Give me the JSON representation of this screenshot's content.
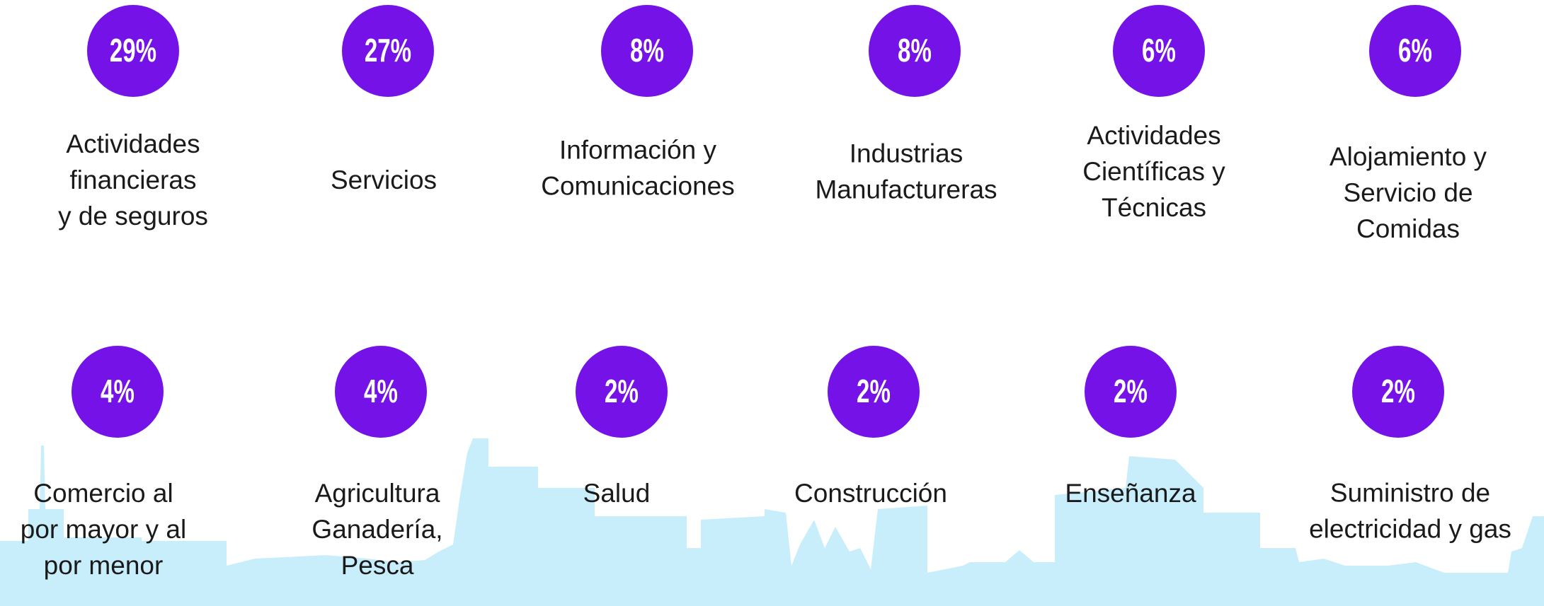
{
  "items": [
    {
      "percent": "29%",
      "lines": [
        "Actividades",
        "financieras",
        "y de seguros"
      ]
    },
    {
      "percent": "27%",
      "lines": [
        "Servicios"
      ]
    },
    {
      "percent": "8%",
      "lines": [
        "Información y",
        "Comunicaciones"
      ]
    },
    {
      "percent": "8%",
      "lines": [
        "Industrias",
        "Manufactureras"
      ]
    },
    {
      "percent": "6%",
      "lines": [
        "Actividades",
        "Científicas y",
        "Técnicas"
      ]
    },
    {
      "percent": "6%",
      "lines": [
        "Alojamiento y",
        "Servicio de",
        "Comidas"
      ]
    },
    {
      "percent": "4%",
      "lines": [
        "Comercio al",
        "por mayor y al",
        "por menor"
      ]
    },
    {
      "percent": "4%",
      "lines": [
        "Agricultura",
        "Ganadería,",
        "Pesca"
      ]
    },
    {
      "percent": "2%",
      "lines": [
        "Salud"
      ]
    },
    {
      "percent": "2%",
      "lines": [
        "Construcción"
      ]
    },
    {
      "percent": "2%",
      "lines": [
        "Enseñanza"
      ]
    },
    {
      "percent": "2%",
      "lines": [
        "Suministro de",
        "electricidad y gas"
      ]
    }
  ]
}
